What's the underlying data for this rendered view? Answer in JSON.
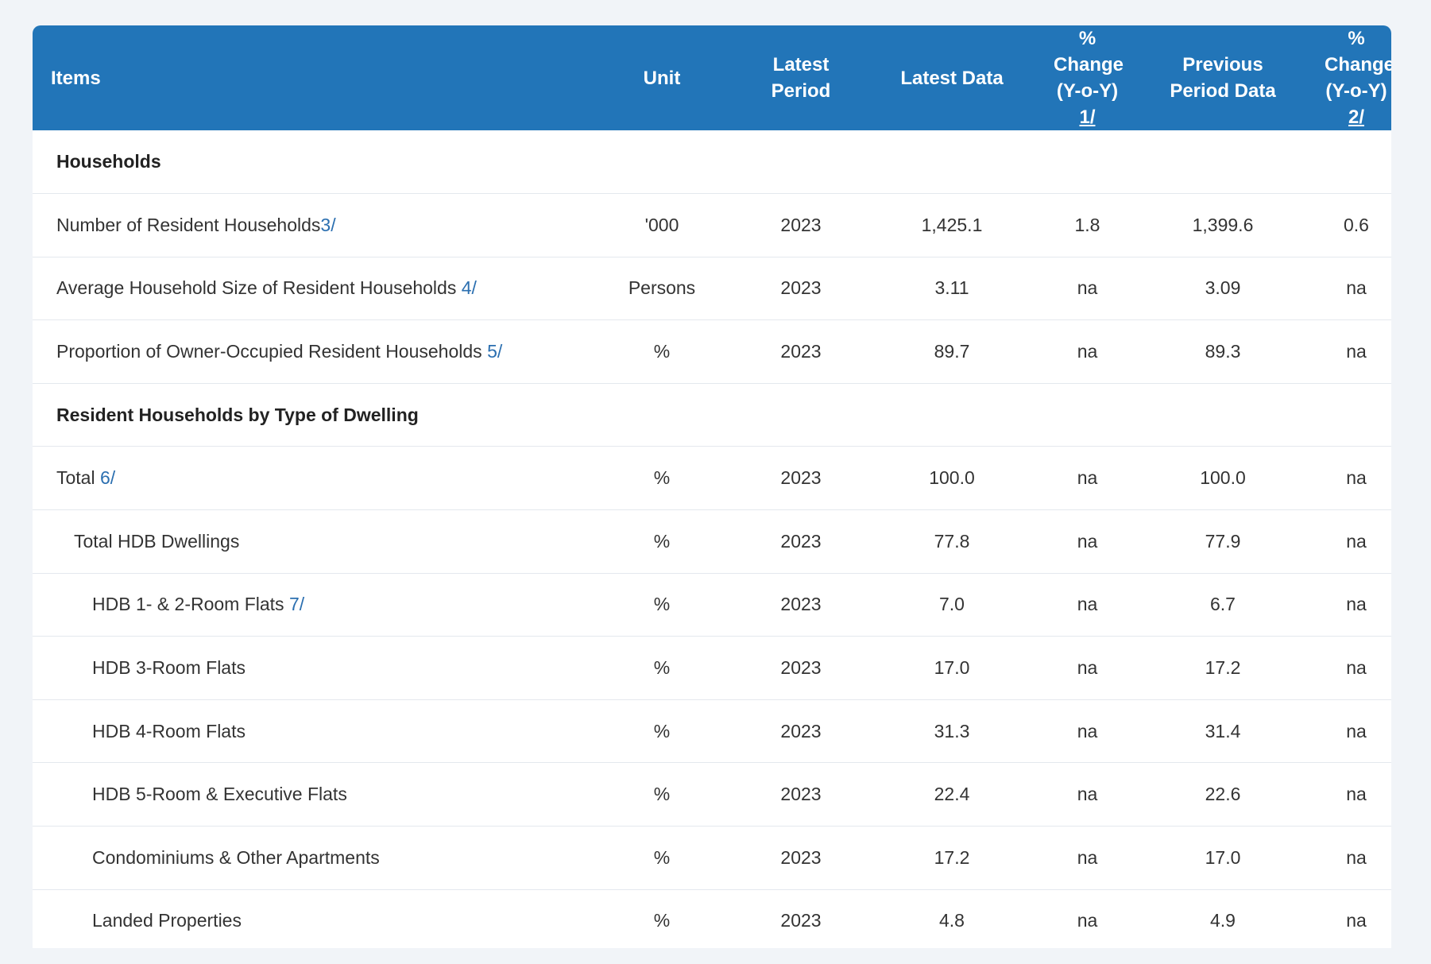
{
  "header": {
    "items": "Items",
    "unit": "Unit",
    "latest_period": "Latest Period",
    "latest_data": "Latest Data",
    "pct_change_1_line1": "% Change",
    "pct_change_1_line2": "(Y-o-Y)",
    "pct_change_1_note": "1/",
    "previous_line1": "Previous",
    "previous_line2": "Period Data",
    "pct_change_2_line1": "% Change",
    "pct_change_2_line2": "(Y-o-Y)",
    "pct_change_2_note": "2/"
  },
  "sections": {
    "households": "Households",
    "dwelling": "Resident Households by Type of Dwelling"
  },
  "rows": [
    {
      "label": "Number of Resident Households",
      "note": "3/",
      "unit": "'000",
      "period": "2023",
      "latest": "1,425.1",
      "chg": "1.8",
      "prev": "1,399.6",
      "chg2": "0.6"
    },
    {
      "label": "Average Household Size of Resident Households ",
      "note": "4/",
      "unit": "Persons",
      "period": "2023",
      "latest": "3.11",
      "chg": "na",
      "prev": "3.09",
      "chg2": "na"
    },
    {
      "label": "Proportion of Owner-Occupied Resident Households ",
      "note": "5/",
      "unit": "%",
      "period": "2023",
      "latest": "89.7",
      "chg": "na",
      "prev": "89.3",
      "chg2": "na"
    },
    {
      "label": "Total ",
      "note": "6/",
      "unit": "%",
      "period": "2023",
      "latest": "100.0",
      "chg": "na",
      "prev": "100.0",
      "chg2": "na"
    },
    {
      "label": "Total HDB Dwellings",
      "note": "",
      "unit": "%",
      "period": "2023",
      "latest": "77.8",
      "chg": "na",
      "prev": "77.9",
      "chg2": "na"
    },
    {
      "label": "HDB 1- & 2-Room Flats ",
      "note": "7/",
      "unit": "%",
      "period": "2023",
      "latest": "7.0",
      "chg": "na",
      "prev": "6.7",
      "chg2": "na"
    },
    {
      "label": "HDB 3-Room Flats",
      "note": "",
      "unit": "%",
      "period": "2023",
      "latest": "17.0",
      "chg": "na",
      "prev": "17.2",
      "chg2": "na"
    },
    {
      "label": "HDB 4-Room Flats",
      "note": "",
      "unit": "%",
      "period": "2023",
      "latest": "31.3",
      "chg": "na",
      "prev": "31.4",
      "chg2": "na"
    },
    {
      "label": "HDB 5-Room & Executive Flats",
      "note": "",
      "unit": "%",
      "period": "2023",
      "latest": "22.4",
      "chg": "na",
      "prev": "22.6",
      "chg2": "na"
    },
    {
      "label": "Condominiums & Other Apartments",
      "note": "",
      "unit": "%",
      "period": "2023",
      "latest": "17.2",
      "chg": "na",
      "prev": "17.0",
      "chg2": "na"
    },
    {
      "label": "Landed Properties",
      "note": "",
      "unit": "%",
      "period": "2023",
      "latest": "4.8",
      "chg": "na",
      "prev": "4.9",
      "chg2": "na"
    }
  ],
  "colors": {
    "header_bg": "#2275b8",
    "footnote_link": "#2b6fb0",
    "page_bg": "#f1f4f8"
  }
}
